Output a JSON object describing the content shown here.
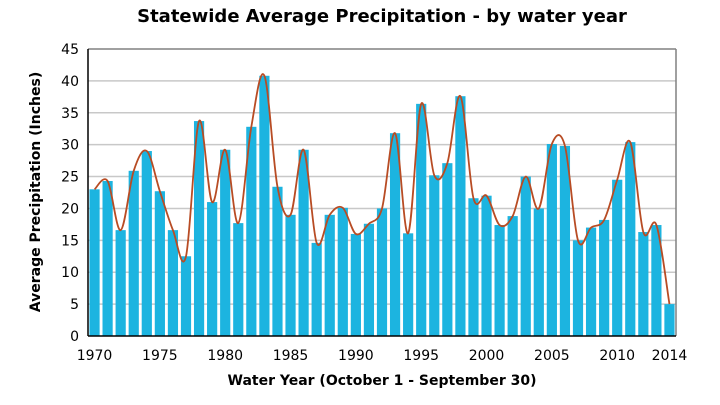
{
  "chart_data": {
    "type": "bar",
    "title": "Statewide Average Precipitation - by water year",
    "xlabel": "Water Year (October 1 - September 30)",
    "ylabel": "Average Precipitation (Inches)",
    "ylim": [
      0,
      45
    ],
    "yticks": [
      0,
      5,
      10,
      15,
      20,
      25,
      30,
      35,
      40,
      45
    ],
    "xtick_labels": [
      "1970",
      "1975",
      "1980",
      "1985",
      "1990",
      "1995",
      "2000",
      "2005",
      "2010",
      "2014"
    ],
    "grid": true,
    "legend": "none",
    "categories": [
      1970,
      1971,
      1972,
      1973,
      1974,
      1975,
      1976,
      1977,
      1978,
      1979,
      1980,
      1981,
      1982,
      1983,
      1984,
      1985,
      1986,
      1987,
      1988,
      1989,
      1990,
      1991,
      1992,
      1993,
      1994,
      1995,
      1996,
      1997,
      1998,
      1999,
      2000,
      2001,
      2002,
      2003,
      2004,
      2005,
      2006,
      2007,
      2008,
      2009,
      2010,
      2011,
      2012,
      2013,
      2014
    ],
    "series": [
      {
        "name": "Average Precipitation",
        "kind": "bar",
        "color": "#1cb4e0",
        "values": [
          23.0,
          24.3,
          16.6,
          25.9,
          29.0,
          22.7,
          16.6,
          12.5,
          33.7,
          21.0,
          29.2,
          17.7,
          32.8,
          40.8,
          23.4,
          19.0,
          29.2,
          14.6,
          19.0,
          20.1,
          16.0,
          17.6,
          20.0,
          31.8,
          16.1,
          36.4,
          25.2,
          27.1,
          37.6,
          21.6,
          22.0,
          17.4,
          18.8,
          25.0,
          20.0,
          30.1,
          29.8,
          15.0,
          17.0,
          18.2,
          24.5,
          30.4,
          16.3,
          17.4,
          5.0
        ]
      },
      {
        "name": "Smoothed trend",
        "kind": "line",
        "color": "#b84c24",
        "same_as": "Average Precipitation"
      }
    ]
  }
}
